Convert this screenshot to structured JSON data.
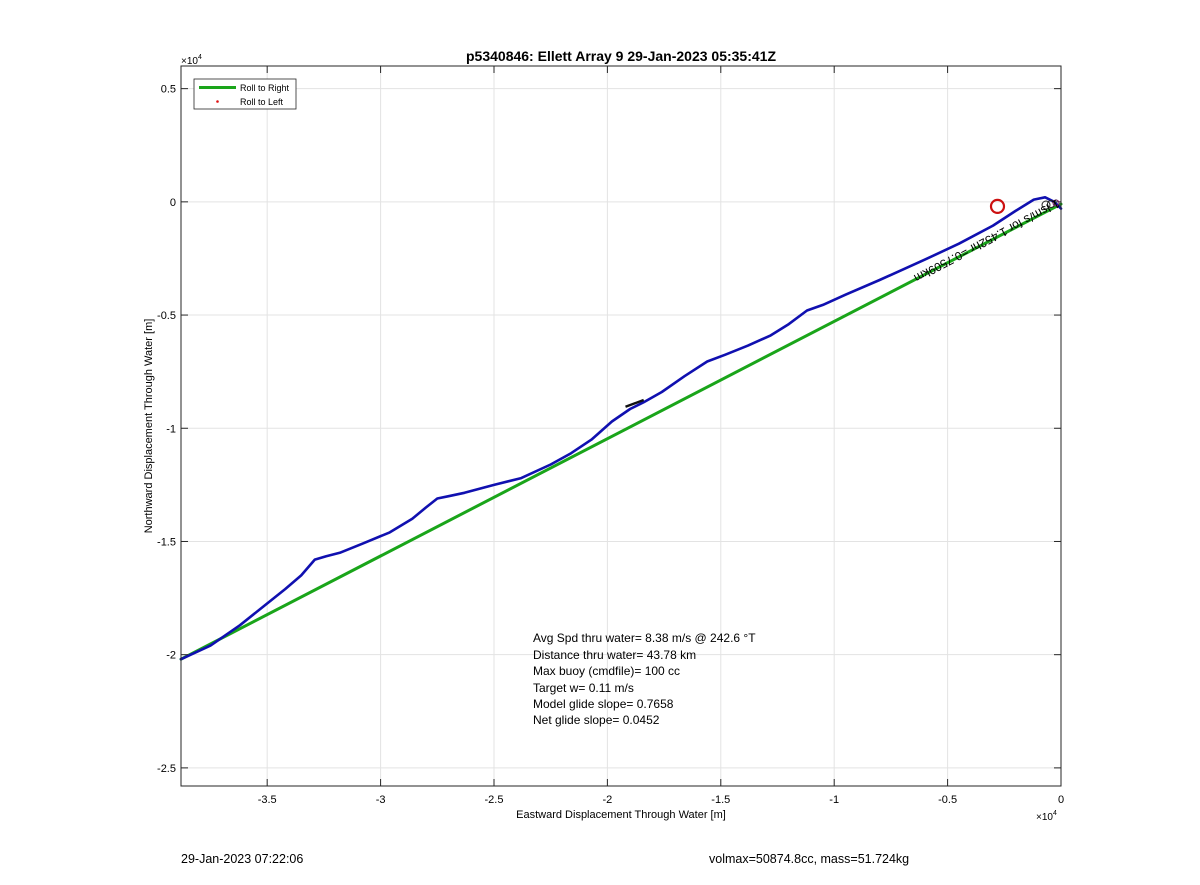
{
  "chart_data": {
    "type": "line",
    "title": "p5340846: Ellett Array 9 29-Jan-2023 05:35:41Z",
    "xlabel": "Eastward Displacement Through Water [m]",
    "ylabel": "Northward Displacement Through Water [m]",
    "xlim": [
      -3.88,
      0
    ],
    "ylim": [
      -2.58,
      0.6
    ],
    "axis_multiplier": "×10^4",
    "x_multiplier_label": "×10",
    "x_multiplier_exp": "4",
    "y_multiplier_label": "×10",
    "y_multiplier_exp": "4",
    "xticks": [
      -3.5,
      -3,
      -2.5,
      -2,
      -1.5,
      -1,
      -0.5,
      0
    ],
    "xtick_labels": [
      "-3.5",
      "-3",
      "-2.5",
      "-2",
      "-1.5",
      "-1",
      "-0.5",
      "0"
    ],
    "yticks": [
      0.5,
      0,
      -0.5,
      -1,
      -1.5,
      -2,
      -2.5
    ],
    "ytick_labels": [
      "0.5",
      "0",
      "-0.5",
      "-1",
      "-1.5",
      "-2",
      "-2.5"
    ],
    "grid": true,
    "legend_position": "top-left",
    "legend": [
      {
        "label": "Roll to Right",
        "color": "#1aa51a",
        "style": "line"
      },
      {
        "label": "Roll to Left",
        "color": "#e01010",
        "style": "dot"
      }
    ],
    "series": [
      {
        "name": "Roll to Right",
        "color": "#1aa51a",
        "x": [
          -3.88,
          0
        ],
        "y": [
          -2.02,
          -0.01
        ]
      },
      {
        "name": "",
        "color": "#1010b0",
        "x": [
          -3.88,
          -3.75,
          -3.62,
          -3.52,
          -3.42,
          -3.35,
          -3.29,
          -3.24,
          -3.18,
          -3.08,
          -2.96,
          -2.86,
          -2.8,
          -2.75,
          -2.7,
          -2.63,
          -2.5,
          -2.38,
          -2.25,
          -2.16,
          -2.07,
          -1.98,
          -1.9,
          -1.84,
          -1.76,
          -1.66,
          -1.56,
          -1.48,
          -1.38,
          -1.28,
          -1.2,
          -1.12,
          -1.05,
          -0.95,
          -0.8,
          -0.6,
          -0.45,
          -0.3,
          -0.2,
          -0.12,
          -0.07,
          -0.03,
          0
        ],
        "y": [
          -2.02,
          -1.96,
          -1.87,
          -1.79,
          -1.71,
          -1.65,
          -1.58,
          -1.565,
          -1.55,
          -1.51,
          -1.46,
          -1.4,
          -1.35,
          -1.31,
          -1.3,
          -1.285,
          -1.25,
          -1.22,
          -1.16,
          -1.11,
          -1.05,
          -0.97,
          -0.915,
          -0.885,
          -0.84,
          -0.77,
          -0.705,
          -0.675,
          -0.635,
          -0.59,
          -0.54,
          -0.48,
          -0.455,
          -0.41,
          -0.345,
          -0.255,
          -0.185,
          -0.105,
          -0.04,
          0.01,
          0.02,
          0.0,
          -0.03
        ]
      }
    ],
    "markers": [
      {
        "name": "surface-position-circle",
        "x": -0.28,
        "y": -0.02,
        "color": "#cc1010"
      }
    ],
    "annotations": {
      "rotated_text": "1 Ism/s for 1.452hr =0.7509km",
      "stats": [
        "Avg Spd thru water=  8.38 m/s @ 242.6 °T",
        "Distance thru water= 43.78 km",
        "Max buoy (cmdfile)= 100 cc",
        "Target w= 0.11 m/s",
        "Model glide slope= 0.7658",
        "Net glide slope= 0.0452"
      ]
    }
  },
  "footer": {
    "timestamp": "29-Jan-2023 07:22:06",
    "info": "volmax=50874.8cc, mass=51.724kg"
  }
}
